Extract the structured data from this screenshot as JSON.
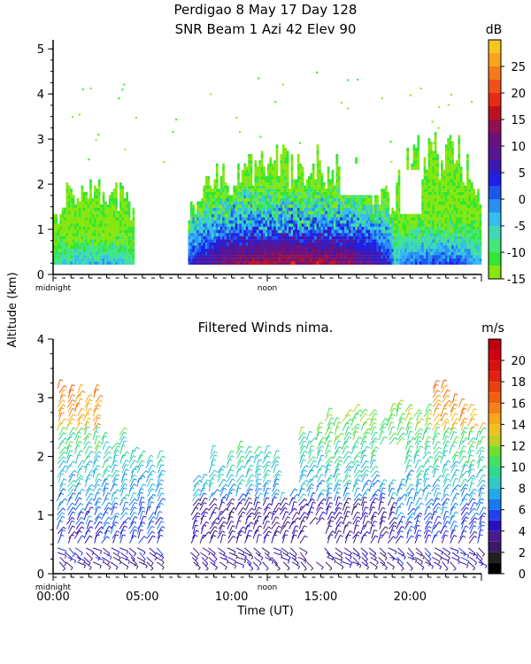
{
  "header": {
    "line1": "Perdigao   8 May 17 Day 128",
    "line2": "SNR Beam 1 Azi  42 Elev 90"
  },
  "shared": {
    "ylabel": "Altitude (km)",
    "xlabel": "Time (UT)",
    "midnight_label": "midnight",
    "noon_label": "noon"
  },
  "chart_data": [
    {
      "type": "heatmap",
      "title": "SNR Beam 1 Azi  42 Elev 90",
      "ylabel": "Altitude (km)",
      "ylim": [
        0,
        5.2
      ],
      "xlim": [
        0,
        24
      ],
      "yticks": [
        0,
        1,
        2,
        3,
        4,
        5
      ],
      "colorbar": {
        "unit": "dB",
        "ticks": [
          -15,
          -10,
          -5,
          0,
          5,
          10,
          15,
          20,
          25
        ],
        "levels": [
          -15,
          -12.5,
          -10,
          -7.5,
          -5,
          -2.5,
          0,
          2.5,
          5,
          7.5,
          10,
          12.5,
          15,
          17.5,
          20,
          22.5,
          25,
          27.5,
          30
        ],
        "colors": [
          "#86e60f",
          "#33e633",
          "#44e87a",
          "#3fd9b5",
          "#33bdf0",
          "#2a8ff5",
          "#1c55f0",
          "#1f1fe6",
          "#3a1ab5",
          "#5a1590",
          "#6a1080",
          "#901050",
          "#c01020",
          "#e62a14",
          "#f0501a",
          "#f57a1a",
          "#f8a51c",
          "#f8c620"
        ]
      },
      "regions": [
        {
          "t0": 0.0,
          "t1": 4.5,
          "top_km": 2.0,
          "core_km": 0.5,
          "max_db": -4
        },
        {
          "t0": 7.5,
          "t1": 19.0,
          "top_km": 2.5,
          "core_km": 1.5,
          "max_db": 15
        },
        {
          "t0": 19.0,
          "t1": 24.0,
          "top_km": 2.8,
          "core_km": 0.8,
          "max_db": 2
        }
      ]
    },
    {
      "type": "scatter",
      "title": "Filtered Winds nima.",
      "xlabel": "Time (UT)",
      "ylabel": "Altitude (km)",
      "ylim": [
        0,
        4
      ],
      "xlim": [
        0,
        24
      ],
      "yticks": [
        0,
        1,
        2,
        3,
        4
      ],
      "xticks": [
        "00:00",
        "05:00",
        "10:00",
        "15:00",
        "20:00"
      ],
      "xtick_hours": [
        0,
        5,
        10,
        15,
        20
      ],
      "colorbar": {
        "unit": "m/s",
        "ticks": [
          0,
          2,
          4,
          6,
          8,
          10,
          12,
          14,
          16,
          18,
          20
        ],
        "levels": [
          0,
          1,
          2,
          3,
          4,
          5,
          6,
          7,
          8,
          9,
          10,
          11,
          12,
          13,
          14,
          15,
          16,
          17,
          18,
          19,
          20,
          21,
          22
        ],
        "colors": [
          "#000000",
          "#202020",
          "#3a1a6a",
          "#4a1a90",
          "#2a10c0",
          "#2040f0",
          "#1878f0",
          "#20a8e8",
          "#30c8c8",
          "#30d890",
          "#40e060",
          "#70e030",
          "#c0d020",
          "#f0c020",
          "#f8a818",
          "#f88018",
          "#f06010",
          "#e84010",
          "#e02010",
          "#d81010",
          "#d00010",
          "#c00010"
        ]
      },
      "wind_columns": [
        {
          "t": 0.3,
          "top": 3.2
        },
        {
          "t": 0.8,
          "top": 3.1
        },
        {
          "t": 1.3,
          "top": 3.1
        },
        {
          "t": 1.8,
          "top": 3.0
        },
        {
          "t": 2.3,
          "top": 3.1
        },
        {
          "t": 2.8,
          "top": 2.3
        },
        {
          "t": 3.3,
          "top": 2.2
        },
        {
          "t": 3.8,
          "top": 2.4
        },
        {
          "t": 4.3,
          "top": 2.1
        },
        {
          "t": 4.8,
          "top": 2.0
        },
        {
          "t": 5.3,
          "top": 1.9
        },
        {
          "t": 5.8,
          "top": 2.0
        },
        {
          "t": 7.8,
          "top": 1.6
        },
        {
          "t": 8.3,
          "top": 1.6
        },
        {
          "t": 8.8,
          "top": 2.1
        },
        {
          "t": 9.3,
          "top": 1.8
        },
        {
          "t": 9.8,
          "top": 2.0
        },
        {
          "t": 10.3,
          "top": 2.2
        },
        {
          "t": 10.8,
          "top": 2.1
        },
        {
          "t": 11.3,
          "top": 2.1
        },
        {
          "t": 11.8,
          "top": 2.1
        },
        {
          "t": 12.3,
          "top": 2.0
        },
        {
          "t": 12.8,
          "top": 1.3
        },
        {
          "t": 13.3,
          "top": 1.4
        },
        {
          "t": 13.8,
          "top": 2.4
        },
        {
          "t": 14.3,
          "top": 2.3
        },
        {
          "t": 14.8,
          "top": 2.5
        },
        {
          "t": 15.3,
          "top": 2.7
        },
        {
          "t": 15.8,
          "top": 2.6
        },
        {
          "t": 16.3,
          "top": 2.7
        },
        {
          "t": 16.8,
          "top": 2.8
        },
        {
          "t": 17.3,
          "top": 2.7
        },
        {
          "t": 17.8,
          "top": 2.7
        },
        {
          "t": 18.3,
          "top": 2.6
        },
        {
          "t": 18.8,
          "top": 2.8
        },
        {
          "t": 19.3,
          "top": 2.9
        },
        {
          "t": 19.8,
          "top": 2.8
        },
        {
          "t": 20.3,
          "top": 2.7
        },
        {
          "t": 20.8,
          "top": 2.8
        },
        {
          "t": 21.3,
          "top": 3.2
        },
        {
          "t": 21.8,
          "top": 3.2
        },
        {
          "t": 22.3,
          "top": 3.0
        },
        {
          "t": 22.8,
          "top": 2.9
        },
        {
          "t": 23.3,
          "top": 2.8
        },
        {
          "t": 23.8,
          "top": 2.5
        }
      ]
    }
  ]
}
